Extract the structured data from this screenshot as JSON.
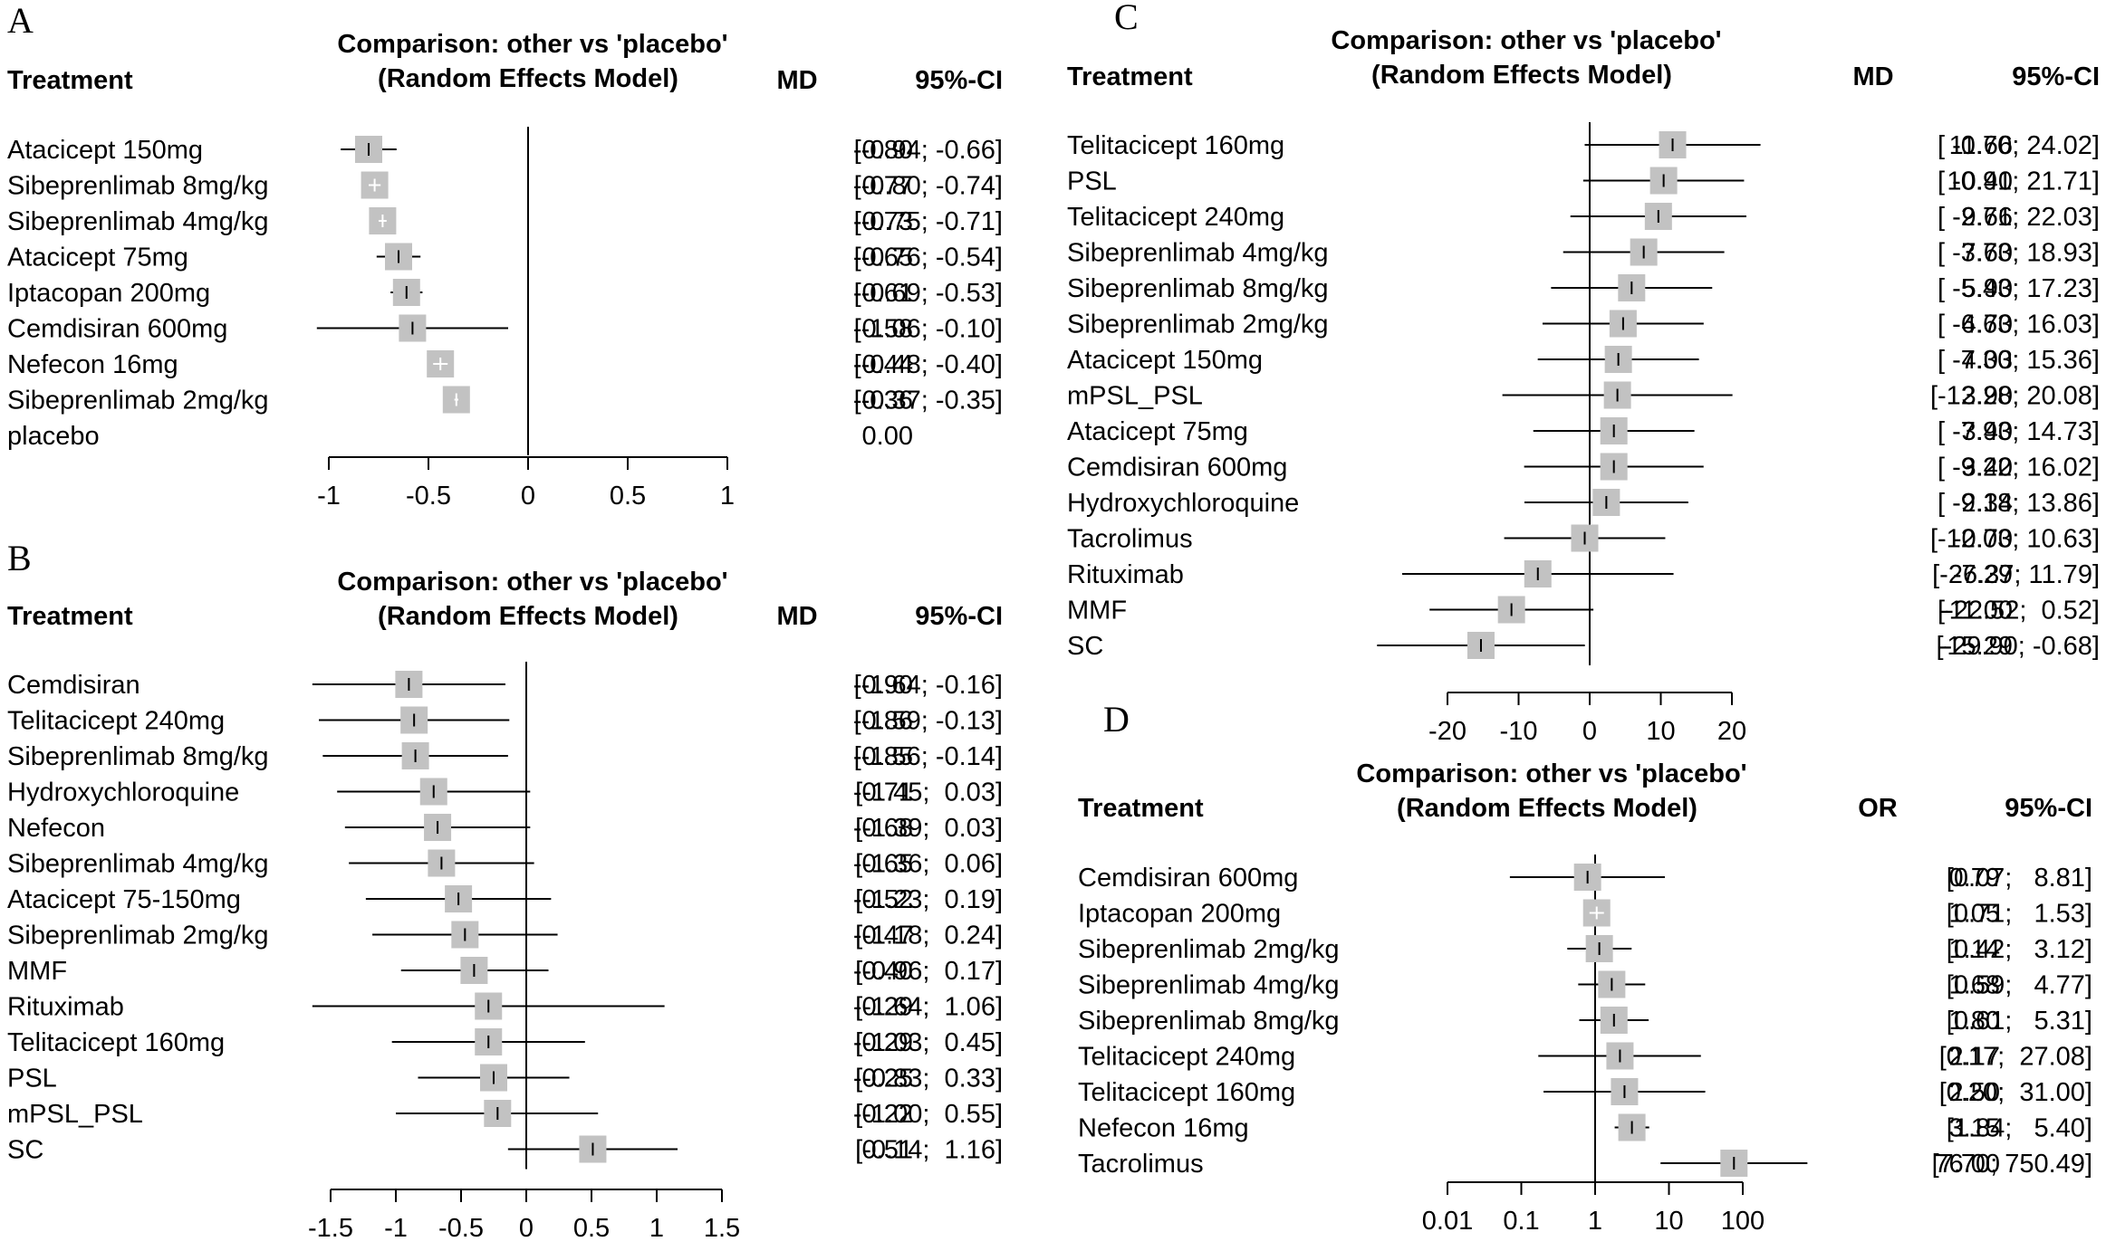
{
  "figure": {
    "panels": [
      {
        "letter": "A",
        "title_line1": "Comparison: other vs 'placebo'",
        "title_line2": "(Random Effects Model)",
        "col_treatment": "Treatment",
        "col_effect": "MD",
        "col_ci": "95%-CI"
      },
      {
        "letter": "B",
        "title_line1": "Comparison: other vs 'placebo'",
        "title_line2": "(Random Effects Model)",
        "col_treatment": "Treatment",
        "col_effect": "MD",
        "col_ci": "95%-CI"
      },
      {
        "letter": "C",
        "title_line1": "Comparison: other vs 'placebo'",
        "title_line2": "(Random Effects Model)",
        "col_treatment": "Treatment",
        "col_effect": "MD",
        "col_ci": "95%-CI"
      },
      {
        "letter": "D",
        "title_line1": "Comparison: other vs 'placebo'",
        "title_line2": "(Random Effects Model)",
        "col_treatment": "Treatment",
        "col_effect": "OR",
        "col_ci": "95%-CI"
      }
    ]
  },
  "chart_data": [
    {
      "type": "forest",
      "panel": "A",
      "measure": "MD",
      "scale": "linear",
      "xlim": [
        -1,
        1
      ],
      "ticks": [
        -1,
        -0.5,
        0,
        0.5,
        1
      ],
      "tick_labels": [
        "-1",
        "-0.5",
        "0",
        "0.5",
        "1"
      ],
      "reference_line": 0,
      "rows": [
        {
          "label": "Atacicept 150mg",
          "est": -0.8,
          "lo": -0.94,
          "hi": -0.66,
          "est_text": "-0.80",
          "ci_text": "[-0.94; -0.66]"
        },
        {
          "label": "Sibeprenlimab 8mg/kg",
          "est": -0.77,
          "lo": -0.8,
          "hi": -0.74,
          "est_text": "-0.77",
          "ci_text": "[-0.80; -0.74]"
        },
        {
          "label": "Sibeprenlimab 4mg/kg",
          "est": -0.73,
          "lo": -0.75,
          "hi": -0.71,
          "est_text": "-0.73",
          "ci_text": "[-0.75; -0.71]"
        },
        {
          "label": "Atacicept 75mg",
          "est": -0.65,
          "lo": -0.76,
          "hi": -0.54,
          "est_text": "-0.65",
          "ci_text": "[-0.76; -0.54]"
        },
        {
          "label": "Iptacopan 200mg",
          "est": -0.61,
          "lo": -0.69,
          "hi": -0.53,
          "est_text": "-0.61",
          "ci_text": "[-0.69; -0.53]"
        },
        {
          "label": "Cemdisiran 600mg",
          "est": -0.58,
          "lo": -1.06,
          "hi": -0.1,
          "est_text": "-0.58",
          "ci_text": "[-1.06; -0.10]"
        },
        {
          "label": "Nefecon 16mg",
          "est": -0.44,
          "lo": -0.48,
          "hi": -0.4,
          "est_text": "-0.44",
          "ci_text": "[-0.48; -0.40]"
        },
        {
          "label": "Sibeprenlimab 2mg/kg",
          "est": -0.36,
          "lo": -0.37,
          "hi": -0.35,
          "est_text": "-0.36",
          "ci_text": "[-0.37; -0.35]"
        },
        {
          "label": "placebo",
          "est": 0.0,
          "lo": null,
          "hi": null,
          "est_text": "0.00",
          "ci_text": ""
        }
      ]
    },
    {
      "type": "forest",
      "panel": "B",
      "measure": "MD",
      "scale": "linear",
      "xlim": [
        -1.5,
        1.5
      ],
      "ticks": [
        -1.5,
        -1,
        -0.5,
        0,
        0.5,
        1,
        1.5
      ],
      "tick_labels": [
        "-1.5",
        "-1",
        "-0.5",
        "0",
        "0.5",
        "1",
        "1.5"
      ],
      "reference_line": 0,
      "rows": [
        {
          "label": "Cemdisiran",
          "est": -0.9,
          "lo": -1.64,
          "hi": -0.16,
          "est_text": "-0.90",
          "ci_text": "[-1.64; -0.16]"
        },
        {
          "label": "Telitacicept 240mg",
          "est": -0.86,
          "lo": -1.59,
          "hi": -0.13,
          "est_text": "-0.86",
          "ci_text": "[-1.59; -0.13]"
        },
        {
          "label": "Sibeprenlimab 8mg/kg",
          "est": -0.85,
          "lo": -1.56,
          "hi": -0.14,
          "est_text": "-0.85",
          "ci_text": "[-1.56; -0.14]"
        },
        {
          "label": "Hydroxychloroquine",
          "est": -0.71,
          "lo": -1.45,
          "hi": 0.03,
          "est_text": "-0.71",
          "ci_text": "[-1.45;  0.03]"
        },
        {
          "label": "Nefecon",
          "est": -0.68,
          "lo": -1.39,
          "hi": 0.03,
          "est_text": "-0.68",
          "ci_text": "[-1.39;  0.03]"
        },
        {
          "label": "Sibeprenlimab 4mg/kg",
          "est": -0.65,
          "lo": -1.36,
          "hi": 0.06,
          "est_text": "-0.65",
          "ci_text": "[-1.36;  0.06]"
        },
        {
          "label": "Atacicept 75-150mg",
          "est": -0.52,
          "lo": -1.23,
          "hi": 0.19,
          "est_text": "-0.52",
          "ci_text": "[-1.23;  0.19]"
        },
        {
          "label": "Sibeprenlimab 2mg/kg",
          "est": -0.47,
          "lo": -1.18,
          "hi": 0.24,
          "est_text": "-0.47",
          "ci_text": "[-1.18;  0.24]"
        },
        {
          "label": "MMF",
          "est": -0.4,
          "lo": -0.96,
          "hi": 0.17,
          "est_text": "-0.40",
          "ci_text": "[-0.96;  0.17]"
        },
        {
          "label": "Rituximab",
          "est": -0.29,
          "lo": -1.64,
          "hi": 1.06,
          "est_text": "-0.29",
          "ci_text": "[-1.64;  1.06]"
        },
        {
          "label": "Telitacicept 160mg",
          "est": -0.29,
          "lo": -1.03,
          "hi": 0.45,
          "est_text": "-0.29",
          "ci_text": "[-1.03;  0.45]"
        },
        {
          "label": "PSL",
          "est": -0.25,
          "lo": -0.83,
          "hi": 0.33,
          "est_text": "-0.25",
          "ci_text": "[-0.83;  0.33]"
        },
        {
          "label": "mPSL_PSL",
          "est": -0.22,
          "lo": -1.0,
          "hi": 0.55,
          "est_text": "-0.22",
          "ci_text": "[-1.00;  0.55]"
        },
        {
          "label": "SC",
          "est": 0.51,
          "lo": -0.14,
          "hi": 1.16,
          "est_text": "0.51",
          "ci_text": "[-0.14;  1.16]"
        }
      ]
    },
    {
      "type": "forest",
      "panel": "C",
      "measure": "MD",
      "scale": "linear",
      "xlim": [
        -20,
        20
      ],
      "ticks": [
        -20,
        -10,
        0,
        10,
        20
      ],
      "tick_labels": [
        "-20",
        "-10",
        "0",
        "10",
        "20"
      ],
      "reference_line": 0,
      "rows": [
        {
          "label": "Telitacicept 160mg",
          "est": 11.66,
          "lo": -0.7,
          "hi": 24.02,
          "est_text": "11.66",
          "ci_text": "[ -0.70; 24.02]"
        },
        {
          "label": "PSL",
          "est": 10.4,
          "lo": -0.91,
          "hi": 21.71,
          "est_text": "10.40",
          "ci_text": "[ -0.91; 21.71]"
        },
        {
          "label": "Telitacicept 240mg",
          "est": 9.66,
          "lo": -2.71,
          "hi": 22.03,
          "est_text": "9.66",
          "ci_text": "[ -2.71; 22.03]"
        },
        {
          "label": "Sibeprenlimab 4mg/kg",
          "est": 7.6,
          "lo": -3.73,
          "hi": 18.93,
          "est_text": "7.60",
          "ci_text": "[ -3.73; 18.93]"
        },
        {
          "label": "Sibeprenlimab 8mg/kg",
          "est": 5.9,
          "lo": -5.43,
          "hi": 17.23,
          "est_text": "5.90",
          "ci_text": "[ -5.43; 17.23]"
        },
        {
          "label": "Sibeprenlimab 2mg/kg",
          "est": 4.7,
          "lo": -6.63,
          "hi": 16.03,
          "est_text": "4.70",
          "ci_text": "[ -6.63; 16.03]"
        },
        {
          "label": "Atacicept 150mg",
          "est": 4.03,
          "lo": -7.3,
          "hi": 15.36,
          "est_text": "4.03",
          "ci_text": "[ -7.30; 15.36]"
        },
        {
          "label": "mPSL_PSL",
          "est": 3.9,
          "lo": -12.28,
          "hi": 20.08,
          "est_text": "3.90",
          "ci_text": "[-12.28; 20.08]"
        },
        {
          "label": "Atacicept 75mg",
          "est": 3.4,
          "lo": -7.93,
          "hi": 14.73,
          "est_text": "3.40",
          "ci_text": "[ -7.93; 14.73]"
        },
        {
          "label": "Cemdisiran 600mg",
          "est": 3.4,
          "lo": -9.22,
          "hi": 16.02,
          "est_text": "3.40",
          "ci_text": "[ -9.22; 16.02]"
        },
        {
          "label": "Hydroxychloroquine",
          "est": 2.34,
          "lo": -9.18,
          "hi": 13.86,
          "est_text": "2.34",
          "ci_text": "[ -9.18; 13.86]"
        },
        {
          "label": "Tacrolimus",
          "est": -0.7,
          "lo": -12.03,
          "hi": 10.63,
          "est_text": "-0.70",
          "ci_text": "[-12.03; 10.63]"
        },
        {
          "label": "Rituximab",
          "est": -7.29,
          "lo": -26.37,
          "hi": 11.79,
          "est_text": "-7.29",
          "ci_text": "[-26.37; 11.79]"
        },
        {
          "label": "MMF",
          "est": -11.0,
          "lo": -22.52,
          "hi": 0.52,
          "est_text": "-11.00",
          "ci_text": "[-22.52;  0.52]"
        },
        {
          "label": "SC",
          "est": -15.29,
          "lo": -29.9,
          "hi": -0.68,
          "est_text": "-15.29",
          "ci_text": "[-29.90; -0.68]"
        }
      ]
    },
    {
      "type": "forest",
      "panel": "D",
      "measure": "OR",
      "scale": "log",
      "xlim": [
        0.01,
        100
      ],
      "ticks": [
        0.01,
        0.1,
        1,
        10,
        100
      ],
      "tick_labels": [
        "0.01",
        "0.1",
        "1",
        "10",
        "100"
      ],
      "reference_line": 1,
      "rows": [
        {
          "label": "Cemdisiran 600mg",
          "est": 0.79,
          "lo": 0.07,
          "hi": 8.81,
          "est_text": "0.79",
          "ci_text": "[0.07;   8.81]"
        },
        {
          "label": "Iptacopan 200mg",
          "est": 1.05,
          "lo": 0.71,
          "hi": 1.53,
          "est_text": "1.05",
          "ci_text": "[0.71;   1.53]"
        },
        {
          "label": "Sibeprenlimab 2mg/kg",
          "est": 1.14,
          "lo": 0.42,
          "hi": 3.12,
          "est_text": "1.14",
          "ci_text": "[0.42;   3.12]"
        },
        {
          "label": "Sibeprenlimab 4mg/kg",
          "est": 1.68,
          "lo": 0.59,
          "hi": 4.77,
          "est_text": "1.68",
          "ci_text": "[0.59;   4.77]"
        },
        {
          "label": "Sibeprenlimab 8mg/kg",
          "est": 1.8,
          "lo": 0.61,
          "hi": 5.31,
          "est_text": "1.80",
          "ci_text": "[0.61;   5.31]"
        },
        {
          "label": "Telitacicept 240mg",
          "est": 2.17,
          "lo": 0.17,
          "hi": 27.08,
          "est_text": "2.17",
          "ci_text": "[0.17;  27.08]"
        },
        {
          "label": "Telitacicept 160mg",
          "est": 2.5,
          "lo": 0.2,
          "hi": 31.0,
          "est_text": "2.50",
          "ci_text": "[0.20;  31.00]"
        },
        {
          "label": "Nefecon 16mg",
          "est": 3.15,
          "lo": 1.84,
          "hi": 5.4,
          "est_text": "3.15",
          "ci_text": "[1.84;   5.40]"
        },
        {
          "label": "Tacrolimus",
          "est": 76.0,
          "lo": 7.7,
          "hi": 750.49,
          "est_text": "76.00",
          "ci_text": "[7.70; 750.49]"
        }
      ]
    }
  ]
}
